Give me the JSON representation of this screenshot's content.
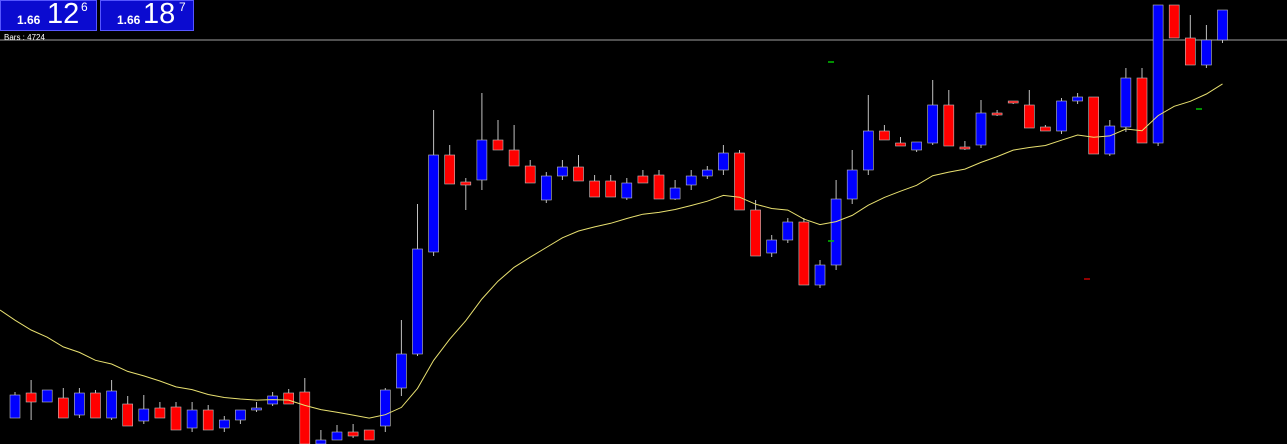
{
  "quote": {
    "bid": {
      "prefix": "1.66",
      "big": "12",
      "pipette": "6"
    },
    "ask": {
      "prefix": "1.66",
      "big": "18",
      "pipette": "7"
    }
  },
  "bars_info": "Bars : 4724",
  "colors": {
    "background": "#000000",
    "bull": "#0000ff",
    "bear": "#ff0000",
    "wick": "#c0c0c0",
    "moving_average": "#e8e070",
    "price_line": "#a0a0a0",
    "box": "#0b0bd0",
    "signal_up": "#00c000",
    "signal_down": "#c00000"
  },
  "chart_data": {
    "type": "candlestick",
    "series": [
      {
        "name": "",
        "candles": [
          [
            418,
            415,
            395,
            392
          ],
          [
            393,
            420,
            402,
            380
          ],
          [
            402,
            402,
            390,
            398
          ],
          [
            398,
            400,
            418,
            388
          ],
          [
            415,
            418,
            393,
            388
          ],
          [
            393,
            398,
            418,
            390
          ],
          [
            418,
            420,
            391,
            380
          ],
          [
            404,
            408,
            426,
            396
          ],
          [
            421,
            424,
            409,
            395
          ],
          [
            408,
            410,
            418,
            402
          ],
          [
            407,
            410,
            430,
            402
          ],
          [
            428,
            432,
            410,
            402
          ],
          [
            410,
            418,
            430,
            405
          ],
          [
            428,
            432,
            420,
            416
          ],
          [
            420,
            424,
            410,
            410
          ],
          [
            410,
            412,
            408,
            402
          ],
          [
            404,
            406,
            396,
            392
          ],
          [
            393,
            395,
            404,
            389
          ],
          [
            392,
            395,
            444,
            378
          ],
          [
            444,
            450,
            440,
            430
          ],
          [
            440,
            440,
            432,
            425
          ],
          [
            432,
            438,
            436,
            424
          ],
          [
            430,
            434,
            440,
            430
          ],
          [
            426,
            432,
            390,
            388
          ],
          [
            388,
            396,
            354,
            320
          ],
          [
            354,
            356,
            249,
            204
          ],
          [
            252,
            256,
            155,
            110
          ],
          [
            155,
            160,
            184,
            145
          ],
          [
            182,
            210,
            185,
            178
          ],
          [
            180,
            190,
            140,
            93
          ],
          [
            140,
            145,
            150,
            120
          ],
          [
            150,
            155,
            166,
            125
          ],
          [
            166,
            170,
            183,
            160
          ],
          [
            200,
            203,
            176,
            172
          ],
          [
            176,
            180,
            167,
            160
          ],
          [
            167,
            170,
            181,
            155
          ],
          [
            181,
            185,
            197,
            175
          ],
          [
            181,
            195,
            197,
            175
          ],
          [
            198,
            200,
            183,
            178
          ],
          [
            176,
            180,
            183,
            170
          ],
          [
            175,
            178,
            199,
            170
          ],
          [
            199,
            200,
            188,
            180
          ],
          [
            185,
            190,
            176,
            170
          ],
          [
            176,
            179,
            170,
            166
          ],
          [
            170,
            175,
            153,
            145
          ],
          [
            153,
            157,
            210,
            150
          ],
          [
            210,
            212,
            256,
            200
          ],
          [
            253,
            257,
            240,
            235
          ],
          [
            240,
            243,
            222,
            218
          ],
          [
            222,
            225,
            285,
            218
          ],
          [
            285,
            288,
            265,
            260
          ],
          [
            265,
            270,
            199,
            180
          ],
          [
            199,
            204,
            170,
            150
          ],
          [
            170,
            175,
            131,
            95
          ],
          [
            131,
            138,
            140,
            125
          ],
          [
            143,
            145,
            146,
            137
          ],
          [
            150,
            152,
            142,
            142
          ],
          [
            143,
            145,
            105,
            80
          ],
          [
            105,
            108,
            146,
            90
          ],
          [
            147,
            150,
            147,
            141
          ],
          [
            145,
            148,
            113,
            100
          ],
          [
            113,
            116,
            114,
            110
          ],
          [
            101,
            104,
            103,
            101
          ],
          [
            105,
            108,
            128,
            90
          ],
          [
            127,
            130,
            131,
            125
          ],
          [
            131,
            134,
            101,
            98
          ],
          [
            101,
            104,
            97,
            93
          ],
          [
            97,
            100,
            154,
            145
          ],
          [
            154,
            156,
            126,
            120
          ],
          [
            127,
            132,
            78,
            68
          ],
          [
            78,
            80,
            143,
            68
          ],
          [
            143,
            146,
            5,
            5
          ],
          [
            5,
            8,
            38,
            5
          ],
          [
            38,
            41,
            65,
            15
          ],
          [
            65,
            68,
            40,
            25
          ],
          [
            40,
            43,
            10,
            10
          ]
        ]
      }
    ]
  }
}
